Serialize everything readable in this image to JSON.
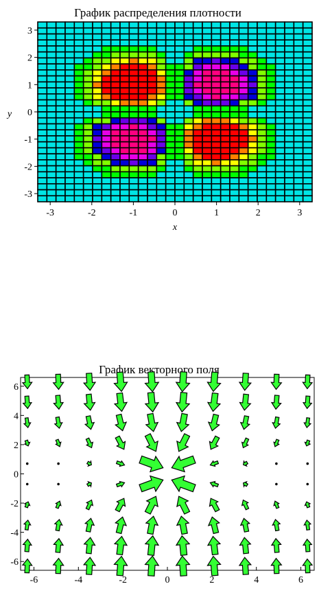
{
  "chart_data": [
    {
      "type": "heatmap",
      "title": "График распределения плотности",
      "xlabel": "x",
      "ylabel": "y",
      "xlim": [
        -3.3,
        3.3
      ],
      "ylim": [
        -3.3,
        3.3
      ],
      "xticks": [
        -3,
        -2,
        -1,
        0,
        1,
        2,
        3
      ],
      "yticks": [
        -3,
        -2,
        -1,
        0,
        1,
        2,
        3
      ],
      "grid_size": [
        30,
        30
      ],
      "colors": [
        "#00e5e5",
        "#0000d8",
        "#6a00e8",
        "#e800e8",
        "#ff0080",
        "#ff0000",
        "#ff8000",
        "#ffff00",
        "#80ff00",
        "#00ff00"
      ],
      "peaks": [
        {
          "x": -1,
          "y": 1,
          "sign": 1
        },
        {
          "x": 1,
          "y": -1,
          "sign": 1
        },
        {
          "x": 1,
          "y": 1,
          "sign": -1
        },
        {
          "x": -1,
          "y": -1,
          "sign": -1
        }
      ],
      "legend": "none"
    },
    {
      "type": "vector_field",
      "title": "График векторного поля",
      "xlim": [
        -6.6,
        6.6
      ],
      "ylim": [
        -6.6,
        6.6
      ],
      "xticks": [
        -6,
        -4,
        -2,
        0,
        2,
        4,
        6
      ],
      "yticks": [
        -6,
        -4,
        -2,
        0,
        2,
        4,
        6
      ],
      "grid_x": [
        -6.3,
        -4.9,
        -3.5,
        -2.1,
        -0.7,
        0.7,
        2.1,
        3.5,
        4.9,
        6.3
      ],
      "grid_y": [
        6.3,
        4.9,
        3.5,
        2.1,
        0.7,
        -0.7,
        -2.1,
        -3.5,
        -4.9,
        -6.3
      ],
      "arrow_color": "#33ff33",
      "vectors": [
        [
          [
            0.02,
            -0.5
          ],
          [
            0.02,
            -0.55
          ],
          [
            0.04,
            -0.62
          ],
          [
            0.06,
            -0.7
          ],
          [
            0.05,
            -0.72
          ],
          [
            -0.05,
            -0.72
          ],
          [
            -0.06,
            -0.7
          ],
          [
            -0.04,
            -0.62
          ],
          [
            -0.02,
            -0.55
          ],
          [
            -0.02,
            -0.5
          ]
        ],
        [
          [
            0.03,
            -0.45
          ],
          [
            0.04,
            -0.5
          ],
          [
            0.06,
            -0.58
          ],
          [
            0.08,
            -0.66
          ],
          [
            0.07,
            -0.7
          ],
          [
            -0.07,
            -0.7
          ],
          [
            -0.08,
            -0.66
          ],
          [
            -0.06,
            -0.58
          ],
          [
            -0.04,
            -0.5
          ],
          [
            -0.03,
            -0.45
          ]
        ],
        [
          [
            0.05,
            -0.35
          ],
          [
            0.07,
            -0.4
          ],
          [
            0.1,
            -0.48
          ],
          [
            0.14,
            -0.58
          ],
          [
            0.12,
            -0.64
          ],
          [
            -0.12,
            -0.64
          ],
          [
            -0.14,
            -0.58
          ],
          [
            -0.1,
            -0.48
          ],
          [
            -0.07,
            -0.4
          ],
          [
            -0.05,
            -0.35
          ]
        ],
        [
          [
            0.07,
            -0.2
          ],
          [
            0.1,
            -0.25
          ],
          [
            0.15,
            -0.33
          ],
          [
            0.24,
            -0.45
          ],
          [
            0.3,
            -0.6
          ],
          [
            -0.3,
            -0.6
          ],
          [
            -0.24,
            -0.45
          ],
          [
            -0.15,
            -0.33
          ],
          [
            -0.1,
            -0.25
          ],
          [
            -0.07,
            -0.2
          ]
        ],
        [
          [
            0.05,
            -0.03
          ],
          [
            0.08,
            -0.05
          ],
          [
            0.14,
            -0.08
          ],
          [
            0.28,
            -0.1
          ],
          [
            0.82,
            -0.3
          ],
          [
            -0.82,
            -0.3
          ],
          [
            -0.28,
            -0.1
          ],
          [
            -0.14,
            -0.08
          ],
          [
            -0.08,
            -0.05
          ],
          [
            -0.05,
            -0.03
          ]
        ],
        [
          [
            0.05,
            0.03
          ],
          [
            0.08,
            0.05
          ],
          [
            0.14,
            0.08
          ],
          [
            0.28,
            0.1
          ],
          [
            0.82,
            0.3
          ],
          [
            -0.82,
            0.3
          ],
          [
            -0.28,
            0.1
          ],
          [
            -0.14,
            0.08
          ],
          [
            -0.08,
            0.05
          ],
          [
            -0.05,
            0.03
          ]
        ],
        [
          [
            0.07,
            0.2
          ],
          [
            0.1,
            0.25
          ],
          [
            0.15,
            0.33
          ],
          [
            0.24,
            0.45
          ],
          [
            0.3,
            0.6
          ],
          [
            -0.3,
            0.6
          ],
          [
            -0.24,
            0.45
          ],
          [
            -0.15,
            0.33
          ],
          [
            -0.1,
            0.25
          ],
          [
            -0.07,
            0.2
          ]
        ],
        [
          [
            0.05,
            0.35
          ],
          [
            0.07,
            0.4
          ],
          [
            0.1,
            0.48
          ],
          [
            0.14,
            0.58
          ],
          [
            0.12,
            0.64
          ],
          [
            -0.12,
            0.64
          ],
          [
            -0.14,
            0.58
          ],
          [
            -0.1,
            0.48
          ],
          [
            -0.07,
            0.4
          ],
          [
            -0.05,
            0.35
          ]
        ],
        [
          [
            0.03,
            0.45
          ],
          [
            0.04,
            0.5
          ],
          [
            0.06,
            0.58
          ],
          [
            0.08,
            0.66
          ],
          [
            0.07,
            0.7
          ],
          [
            -0.07,
            0.7
          ],
          [
            -0.08,
            0.66
          ],
          [
            -0.06,
            0.58
          ],
          [
            -0.04,
            0.5
          ],
          [
            -0.03,
            0.45
          ]
        ],
        [
          [
            0.02,
            0.5
          ],
          [
            0.02,
            0.55
          ],
          [
            0.04,
            0.62
          ],
          [
            0.06,
            0.7
          ],
          [
            0.05,
            0.72
          ],
          [
            -0.05,
            0.72
          ],
          [
            -0.06,
            0.7
          ],
          [
            -0.04,
            0.62
          ],
          [
            -0.02,
            0.55
          ],
          [
            -0.02,
            0.5
          ]
        ]
      ],
      "legend": "none"
    }
  ]
}
